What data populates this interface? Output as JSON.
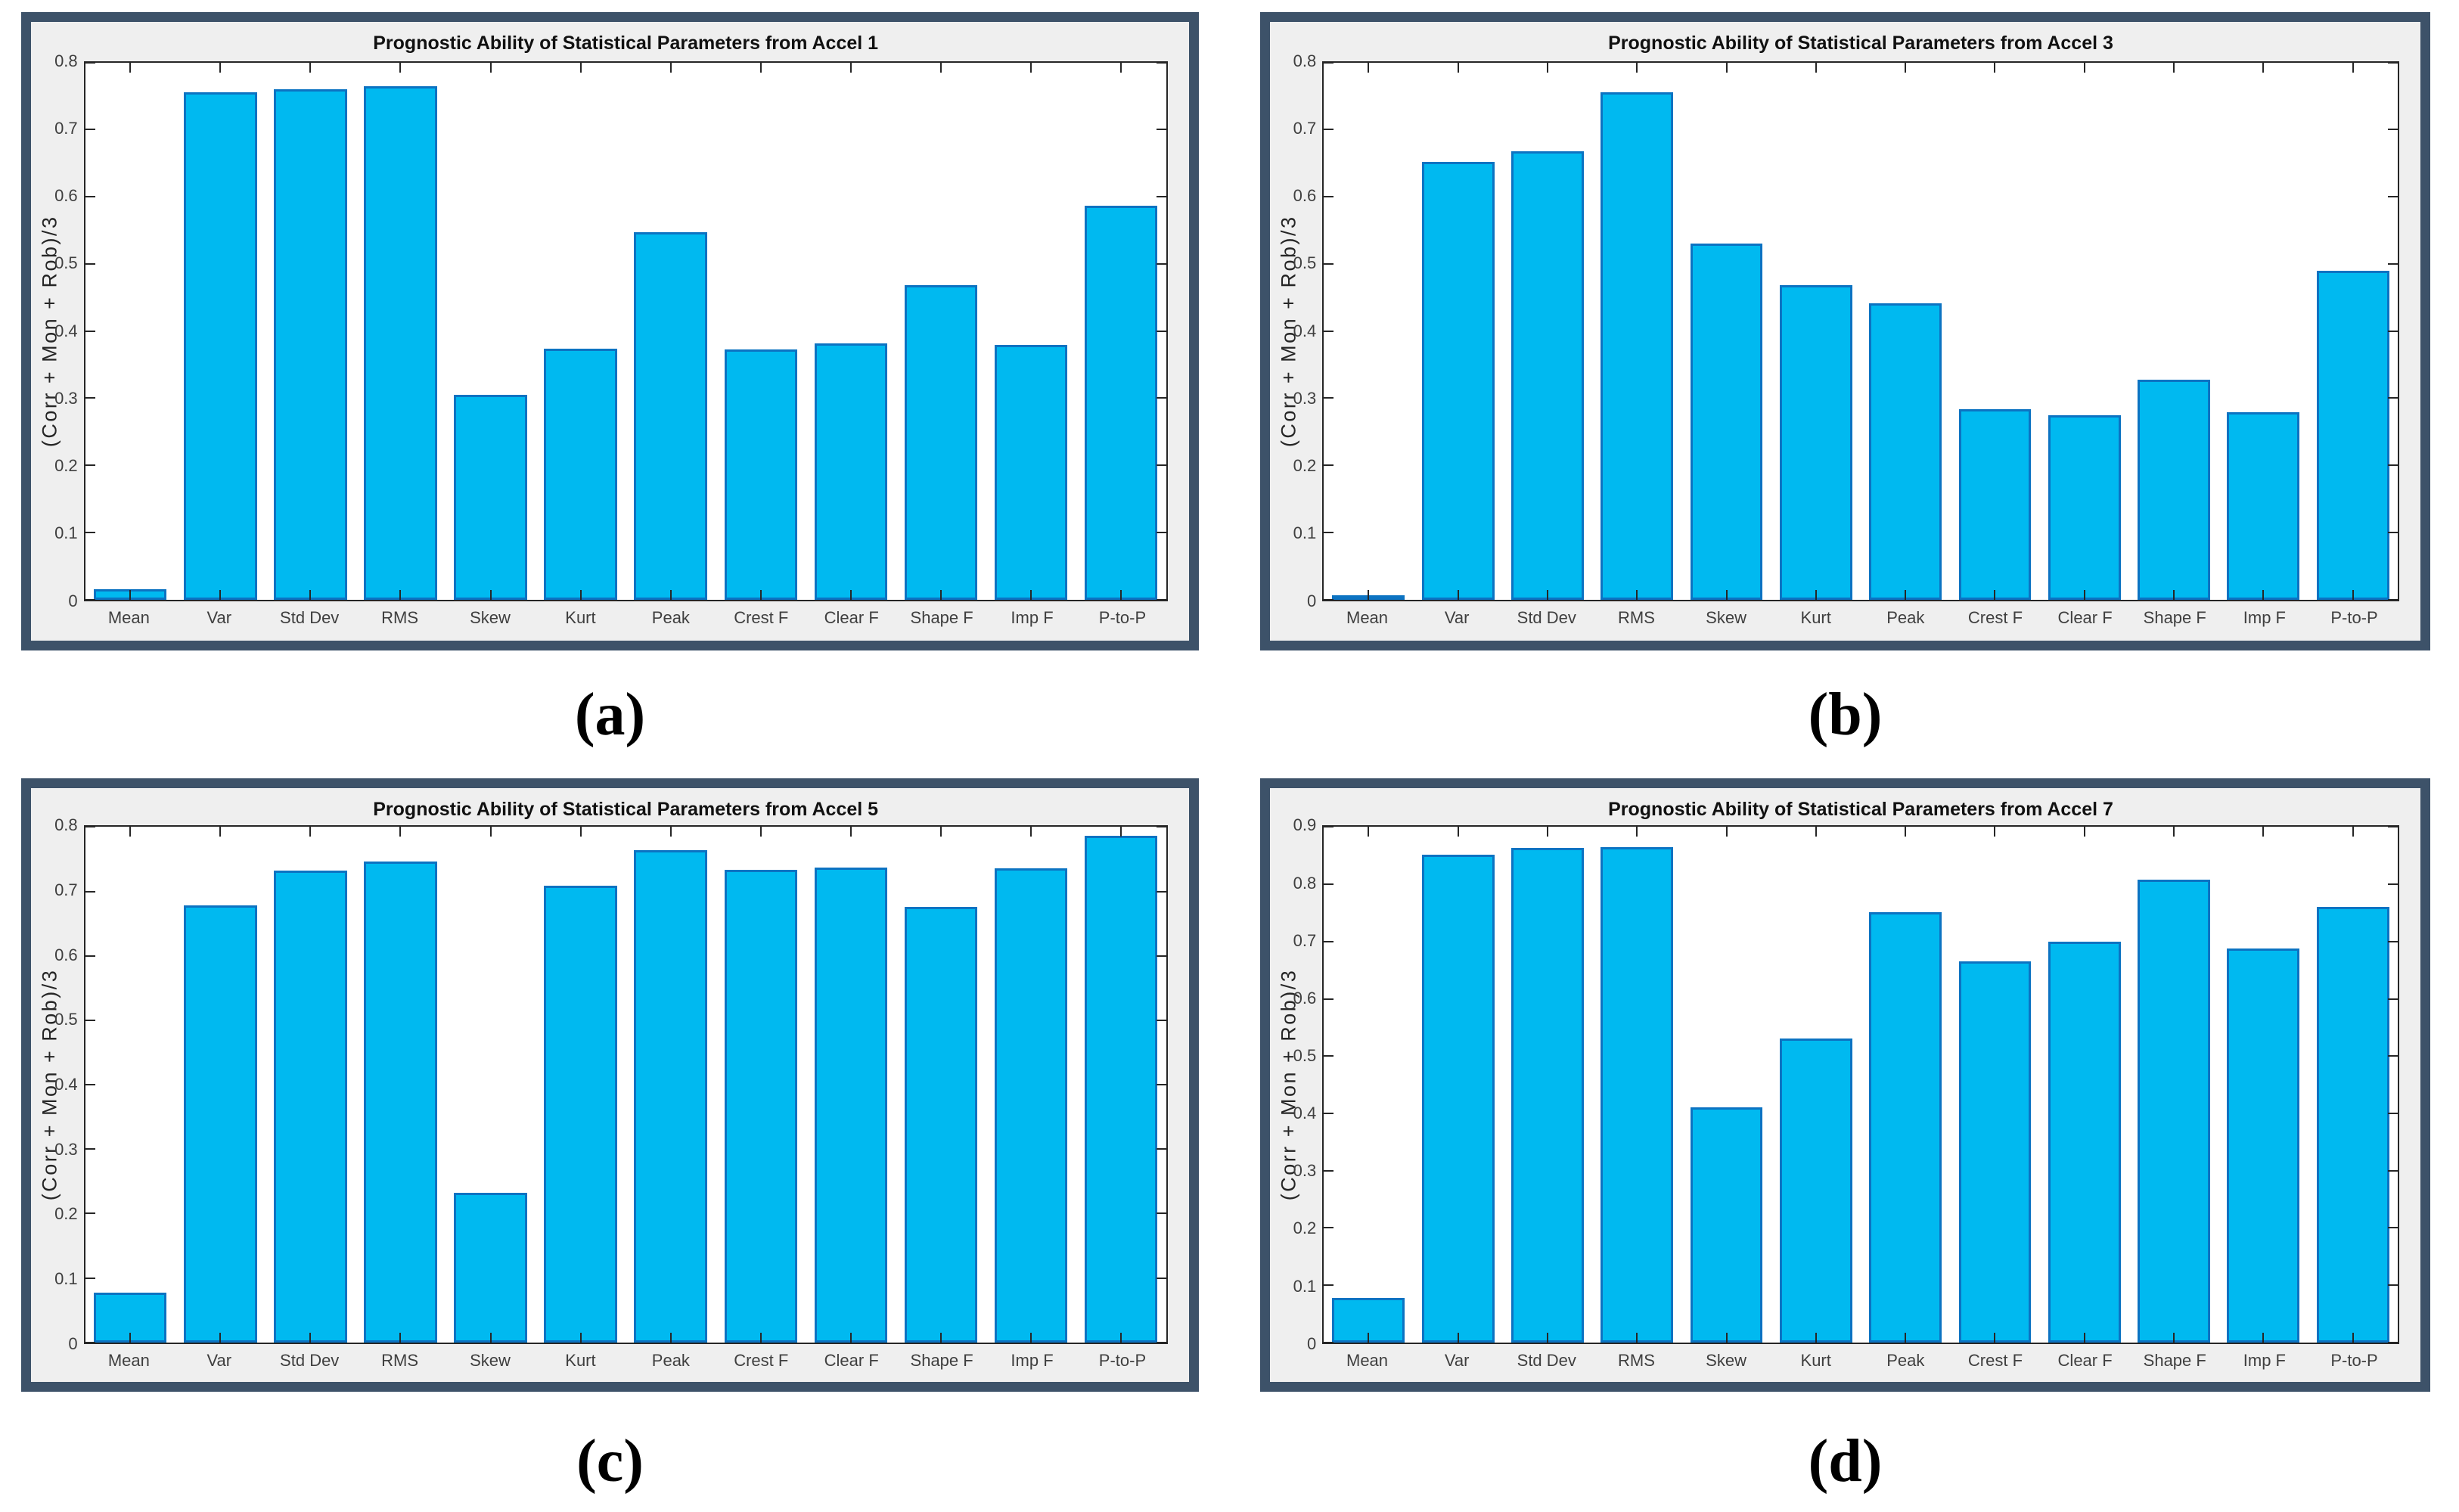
{
  "page": {
    "background": "#ffffff"
  },
  "styles": {
    "frame_border": "#3d5269",
    "panel_background": "#efefef",
    "plot_background": "#ffffff",
    "axis_color": "#262626",
    "tick_label_color": "#3f3f3f",
    "bar_fill": "#00b9f0",
    "bar_edge": "#0c73c2",
    "title_color": "#111111",
    "caption_color": "#000000"
  },
  "chart_data": [
    {
      "type": "bar",
      "panel_label": "(a)",
      "title": "Prognostic Ability of Statistical Parameters from Accel 1",
      "ylabel": "(Corr + Mon + Rob)/3",
      "xlabel": "",
      "ylim": [
        0,
        0.8
      ],
      "ytick_step": 0.1,
      "grid": false,
      "legend_position": "none",
      "categories": [
        "Mean",
        "Var",
        "Std Dev",
        "RMS",
        "Skew",
        "Kurt",
        "Peak",
        "Crest F",
        "Clear F",
        "Shape F",
        "Imp F",
        "P-to-P"
      ],
      "values": [
        0.015,
        0.756,
        0.76,
        0.765,
        0.305,
        0.374,
        0.547,
        0.373,
        0.381,
        0.468,
        0.379,
        0.587
      ]
    },
    {
      "type": "bar",
      "panel_label": "(b)",
      "title": "Prognostic Ability of Statistical Parameters from Accel 3",
      "ylabel": "(Corr + Mon + Rob)/3",
      "xlabel": "",
      "ylim": [
        0,
        0.8
      ],
      "ytick_step": 0.1,
      "grid": false,
      "legend_position": "none",
      "categories": [
        "Mean",
        "Var",
        "Std Dev",
        "RMS",
        "Skew",
        "Kurt",
        "Peak",
        "Crest F",
        "Clear F",
        "Shape F",
        "Imp F",
        "P-to-P"
      ],
      "values": [
        0.006,
        0.652,
        0.668,
        0.755,
        0.53,
        0.468,
        0.441,
        0.284,
        0.274,
        0.327,
        0.279,
        0.49
      ]
    },
    {
      "type": "bar",
      "panel_label": "(c)",
      "title": "Prognostic Ability of Statistical Parameters from Accel 5",
      "ylabel": "(Corr + Mon + Rob)/3",
      "xlabel": "",
      "ylim": [
        0,
        0.8
      ],
      "ytick_step": 0.1,
      "grid": false,
      "legend_position": "none",
      "categories": [
        "Mean",
        "Var",
        "Std Dev",
        "RMS",
        "Skew",
        "Kurt",
        "Peak",
        "Crest F",
        "Clear F",
        "Shape F",
        "Imp F",
        "P-to-P"
      ],
      "values": [
        0.077,
        0.678,
        0.733,
        0.747,
        0.232,
        0.709,
        0.764,
        0.734,
        0.737,
        0.676,
        0.736,
        0.786
      ]
    },
    {
      "type": "bar",
      "panel_label": "(d)",
      "title": "Prognostic Ability of Statistical Parameters from Accel 7",
      "ylabel": "(Corr + Mon + Rob)/3",
      "xlabel": "",
      "ylim": [
        0,
        0.9
      ],
      "ytick_step": 0.1,
      "grid": false,
      "legend_position": "none",
      "categories": [
        "Mean",
        "Var",
        "Std Dev",
        "RMS",
        "Skew",
        "Kurt",
        "Peak",
        "Crest F",
        "Clear F",
        "Shape F",
        "Imp F",
        "P-to-P"
      ],
      "values": [
        0.078,
        0.852,
        0.864,
        0.865,
        0.411,
        0.531,
        0.752,
        0.665,
        0.7,
        0.808,
        0.688,
        0.761
      ]
    }
  ]
}
